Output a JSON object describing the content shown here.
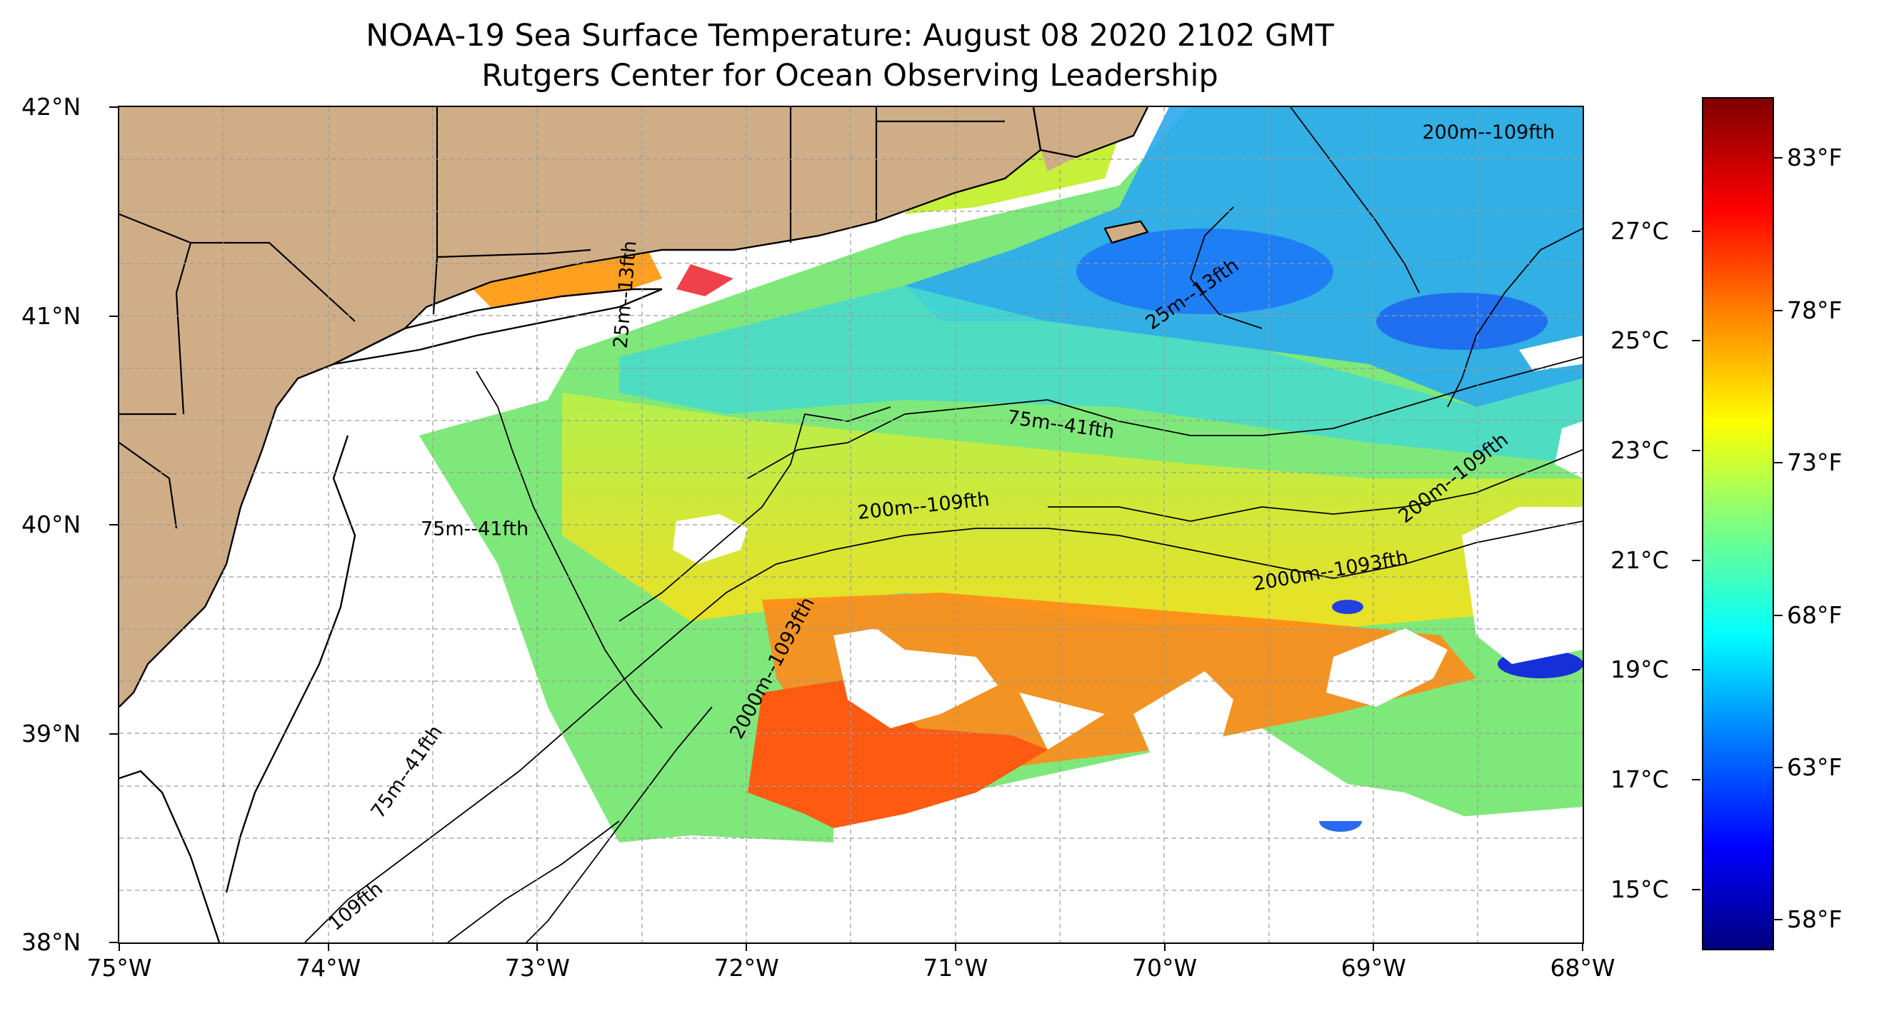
{
  "title": {
    "line1": "NOAA-19 Sea Surface Temperature: August 08 2020 2102 GMT",
    "line2": "Rutgers Center for Ocean Observing Leadership"
  },
  "map": {
    "lon_range": [
      -75,
      -68
    ],
    "lat_range": [
      38,
      42
    ],
    "gridlines": true,
    "colors": {
      "land": "#cfae87",
      "ocean_no_data": "#ffffff",
      "coast": "#000000",
      "grid": "#aaaaaa"
    },
    "x_ticks": [
      {
        "lon": -75,
        "label": "75°W"
      },
      {
        "lon": -74,
        "label": "74°W"
      },
      {
        "lon": -73,
        "label": "73°W"
      },
      {
        "lon": -72,
        "label": "72°W"
      },
      {
        "lon": -71,
        "label": "71°W"
      },
      {
        "lon": -70,
        "label": "70°W"
      },
      {
        "lon": -69,
        "label": "69°W"
      },
      {
        "lon": -68,
        "label": "68°W"
      }
    ],
    "y_ticks": [
      {
        "lat": 38,
        "label": "38°N"
      },
      {
        "lat": 39,
        "label": "39°N"
      },
      {
        "lat": 40,
        "label": "40°N"
      },
      {
        "lat": 41,
        "label": "41°N"
      },
      {
        "lat": 42,
        "label": "42°N"
      }
    ],
    "contour_labels": [
      {
        "text": "200m--109fth",
        "lon": -68.45,
        "lat": 41.85,
        "rot": 0
      },
      {
        "text": "75m--41fth",
        "lon": -70.5,
        "lat": 40.45,
        "rot": 8
      },
      {
        "text": "200m--109fth",
        "lon": -71.15,
        "lat": 40.06,
        "rot": -6
      },
      {
        "text": "75m--41fth",
        "lon": -73.3,
        "lat": 39.95,
        "rot": 0
      },
      {
        "text": "2000m--1093fth",
        "lon": -69.2,
        "lat": 39.75,
        "rot": -10
      },
      {
        "text": "200m--109fth",
        "lon": -68.6,
        "lat": 40.2,
        "rot": -38
      },
      {
        "text": "2000m--1093fth",
        "lon": -71.85,
        "lat": 39.3,
        "rot": -62
      },
      {
        "text": "75m--41fth",
        "lon": -73.6,
        "lat": 38.8,
        "rot": -55
      },
      {
        "text": "109fth",
        "lon": -73.85,
        "lat": 38.15,
        "rot": -40
      },
      {
        "text": "25m--13fth",
        "lon": -69.85,
        "lat": 41.08,
        "rot": -35
      },
      {
        "text": "25m--13fth",
        "lon": -72.55,
        "lat": 41.1,
        "rot": -85
      }
    ]
  },
  "colorbar": {
    "colormap": "jet",
    "range_f": [
      57,
      85
    ],
    "ticks_f": [
      {
        "value": 58,
        "label": "58°F"
      },
      {
        "value": 63,
        "label": "63°F"
      },
      {
        "value": 68,
        "label": "68°F"
      },
      {
        "value": 73,
        "label": "73°F"
      },
      {
        "value": 78,
        "label": "78°F"
      },
      {
        "value": 83,
        "label": "83°F"
      }
    ],
    "ticks_c": [
      {
        "value": 15,
        "label": "15°C"
      },
      {
        "value": 17,
        "label": "17°C"
      },
      {
        "value": 19,
        "label": "19°C"
      },
      {
        "value": 21,
        "label": "21°C"
      },
      {
        "value": 23,
        "label": "23°C"
      },
      {
        "value": 25,
        "label": "25°C"
      },
      {
        "value": 27,
        "label": "27°C"
      }
    ]
  }
}
